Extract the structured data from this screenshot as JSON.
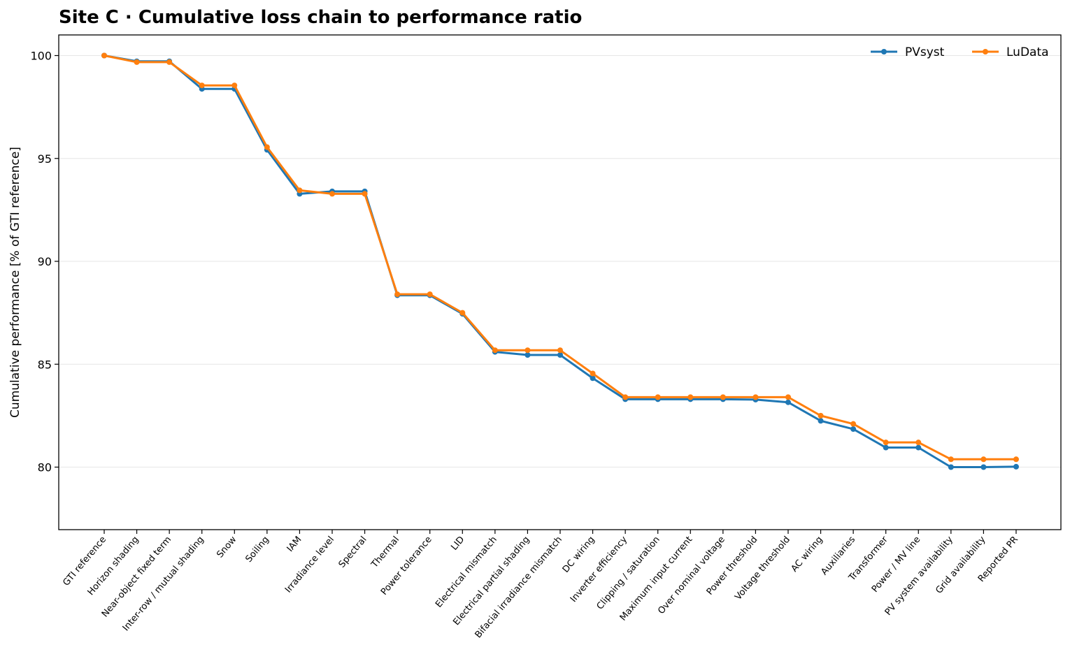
{
  "chart_data": {
    "type": "line",
    "title": "Site C · Cumulative loss chain to performance ratio",
    "xlabel": "",
    "ylabel": "Cumulative performance [% of GTI reference]",
    "ylim": [
      77,
      101
    ],
    "yticks": [
      80,
      85,
      90,
      95,
      100
    ],
    "grid": "horizontal",
    "legend_position": "top-right",
    "categories": [
      "GTI reference",
      "Horizon shading",
      "Near-object fixed term",
      "Inter-row / mutual shading",
      "Snow",
      "Soiling",
      "IAM",
      "Irradiance level",
      "Spectral",
      "Thermal",
      "Power tolerance",
      "LID",
      "Electrical mismatch",
      "Electrical partial shading",
      "Bifacial irradiance mismatch",
      "DC wiring",
      "Inverter efficiency",
      "Clipping / saturation",
      "Maximum input current",
      "Over nominal voltage",
      "Power threshold",
      "Voltage threshold",
      "AC wiring",
      "Auxiliaries",
      "Transformer",
      "Power / MV line",
      "PV system availability",
      "Grid availability",
      "Reported PR"
    ],
    "series": [
      {
        "name": "PVsyst",
        "color": "#1f77b4",
        "values": [
          100.0,
          99.72,
          99.72,
          98.38,
          98.38,
          95.42,
          93.28,
          93.4,
          93.4,
          88.35,
          88.35,
          87.45,
          85.6,
          85.45,
          85.45,
          84.32,
          83.3,
          83.3,
          83.3,
          83.3,
          83.28,
          83.15,
          82.25,
          81.85,
          80.95,
          80.95,
          80.0,
          80.0,
          80.02
        ]
      },
      {
        "name": "LuData",
        "color": "#ff7f0e",
        "values": [
          100.0,
          99.68,
          99.68,
          98.55,
          98.55,
          95.55,
          93.45,
          93.28,
          93.28,
          88.4,
          88.4,
          87.5,
          85.68,
          85.68,
          85.68,
          84.55,
          83.4,
          83.4,
          83.4,
          83.4,
          83.4,
          83.4,
          82.5,
          82.1,
          81.2,
          81.2,
          80.38,
          80.38,
          80.38
        ]
      }
    ]
  }
}
